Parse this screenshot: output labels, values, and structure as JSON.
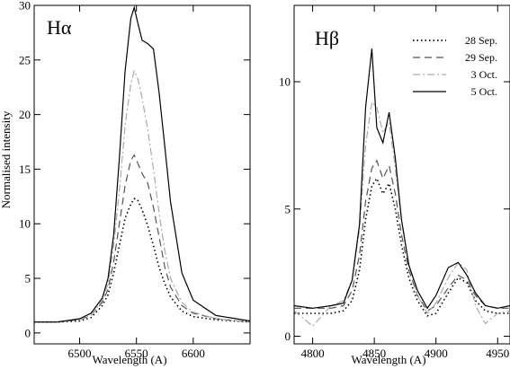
{
  "chart_data": [
    {
      "type": "line",
      "title": "Hα",
      "xlabel": "Wavelength (A)",
      "ylabel": "Normalised intensity",
      "xlim": [
        6460,
        6650
      ],
      "ylim": [
        -1,
        30
      ],
      "xticks": [
        6500,
        6550,
        6600
      ],
      "yticks": [
        0,
        5,
        10,
        15,
        20,
        25,
        30
      ],
      "grid": false,
      "series": [
        {
          "name": "28 Sep.",
          "style": "dotted",
          "color": "#000000",
          "x": [
            6460,
            6480,
            6500,
            6510,
            6520,
            6525,
            6530,
            6535,
            6540,
            6545,
            6548,
            6551,
            6555,
            6560,
            6565,
            6570,
            6575,
            6580,
            6590,
            6600,
            6620,
            6650
          ],
          "y": [
            1.0,
            1.0,
            1.1,
            1.4,
            2.5,
            3.5,
            5.5,
            8.0,
            10.5,
            11.8,
            12.3,
            12.2,
            11.3,
            9.8,
            8.0,
            6.0,
            4.5,
            3.3,
            2.0,
            1.5,
            1.2,
            1.0
          ]
        },
        {
          "name": "29 Sep.",
          "style": "dashed",
          "color": "#555555",
          "x": [
            6460,
            6480,
            6500,
            6510,
            6520,
            6525,
            6530,
            6535,
            6540,
            6545,
            6548,
            6551,
            6555,
            6560,
            6565,
            6570,
            6575,
            6580,
            6590,
            6600,
            6620,
            6650
          ],
          "y": [
            1.0,
            1.0,
            1.2,
            1.6,
            2.8,
            4.0,
            6.5,
            10.0,
            13.5,
            15.8,
            16.3,
            15.6,
            14.6,
            13.7,
            11.5,
            8.8,
            6.0,
            4.2,
            2.5,
            1.8,
            1.3,
            1.0
          ]
        },
        {
          "name": "3 Oct.",
          "style": "dashdot",
          "color": "#aaaaaa",
          "x": [
            6460,
            6480,
            6500,
            6510,
            6520,
            6525,
            6530,
            6535,
            6540,
            6545,
            6548,
            6551,
            6555,
            6560,
            6565,
            6570,
            6575,
            6580,
            6590,
            6600,
            6620,
            6650
          ],
          "y": [
            1.0,
            1.0,
            1.2,
            1.6,
            3.0,
            4.5,
            8.0,
            13.0,
            19.0,
            22.8,
            24.0,
            23.4,
            21.5,
            18.6,
            15.0,
            11.0,
            7.5,
            5.0,
            2.8,
            1.9,
            1.3,
            1.0
          ]
        },
        {
          "name": "5 Oct.",
          "style": "solid",
          "color": "#000000",
          "x": [
            6460,
            6480,
            6500,
            6510,
            6520,
            6525,
            6530,
            6535,
            6540,
            6545,
            6548,
            6551,
            6555,
            6560,
            6565,
            6570,
            6575,
            6580,
            6590,
            6600,
            6620,
            6650
          ],
          "y": [
            1.0,
            1.0,
            1.3,
            1.8,
            3.2,
            5.0,
            9.0,
            16.0,
            24.0,
            28.8,
            29.8,
            28.5,
            26.8,
            26.5,
            26.0,
            22.0,
            17.0,
            12.0,
            5.5,
            3.0,
            1.6,
            1.1
          ]
        }
      ]
    },
    {
      "type": "line",
      "title": "Hβ",
      "xlabel": "Wavelength (A)",
      "ylabel": "",
      "xlim": [
        4785,
        4960
      ],
      "ylim": [
        -0.3,
        13
      ],
      "xticks": [
        4800,
        4850,
        4900,
        4950
      ],
      "yticks": [
        0,
        5,
        10
      ],
      "grid": false,
      "legend": "top-right",
      "series": [
        {
          "name": "28 Sep.",
          "style": "dotted",
          "color": "#000000",
          "x": [
            4785,
            4800,
            4815,
            4825,
            4832,
            4838,
            4843,
            4848,
            4852,
            4857,
            4862,
            4867,
            4872,
            4878,
            4885,
            4893,
            4900,
            4910,
            4918,
            4925,
            4932,
            4940,
            4950,
            4960
          ],
          "y": [
            0.9,
            0.9,
            0.9,
            1.0,
            1.4,
            2.6,
            4.6,
            5.9,
            6.2,
            5.6,
            6.0,
            5.0,
            3.6,
            2.3,
            1.4,
            0.8,
            0.9,
            1.7,
            2.3,
            2.1,
            1.4,
            1.0,
            0.9,
            0.9
          ]
        },
        {
          "name": "29 Sep.",
          "style": "dashed",
          "color": "#555555",
          "x": [
            4785,
            4800,
            4815,
            4825,
            4832,
            4838,
            4843,
            4848,
            4852,
            4857,
            4862,
            4867,
            4872,
            4878,
            4885,
            4893,
            4900,
            4910,
            4918,
            4925,
            4932,
            4940,
            4950,
            4960
          ],
          "y": [
            1.1,
            1.1,
            1.1,
            1.2,
            1.8,
            3.2,
            5.3,
            6.6,
            6.9,
            6.2,
            6.7,
            5.6,
            4.0,
            2.6,
            1.6,
            1.0,
            1.2,
            1.9,
            2.4,
            2.2,
            1.6,
            1.2,
            1.1,
            1.1
          ]
        },
        {
          "name": "3 Oct.",
          "style": "dashdot",
          "color": "#aaaaaa",
          "x": [
            4785,
            4800,
            4815,
            4825,
            4832,
            4838,
            4843,
            4848,
            4852,
            4857,
            4862,
            4867,
            4872,
            4878,
            4885,
            4893,
            4900,
            4910,
            4918,
            4925,
            4932,
            4940,
            4950,
            4960
          ],
          "y": [
            1.0,
            0.4,
            1.2,
            1.4,
            2.2,
            4.2,
            7.5,
            9.2,
            9.0,
            8.0,
            8.4,
            6.6,
            4.6,
            2.8,
            1.6,
            0.9,
            1.3,
            2.3,
            2.9,
            2.6,
            1.2,
            0.5,
            0.9,
            1.0
          ]
        },
        {
          "name": "5 Oct.",
          "style": "solid",
          "color": "#000000",
          "x": [
            4785,
            4800,
            4815,
            4825,
            4832,
            4838,
            4843,
            4848,
            4852,
            4857,
            4862,
            4867,
            4872,
            4878,
            4885,
            4893,
            4900,
            4910,
            4918,
            4925,
            4932,
            4940,
            4950,
            4960
          ],
          "y": [
            1.2,
            1.1,
            1.2,
            1.3,
            2.2,
            4.4,
            9.0,
            11.3,
            8.2,
            7.6,
            8.8,
            7.0,
            4.6,
            2.8,
            1.8,
            1.1,
            1.6,
            2.7,
            2.9,
            2.4,
            1.7,
            1.2,
            1.1,
            1.2
          ]
        }
      ]
    }
  ]
}
